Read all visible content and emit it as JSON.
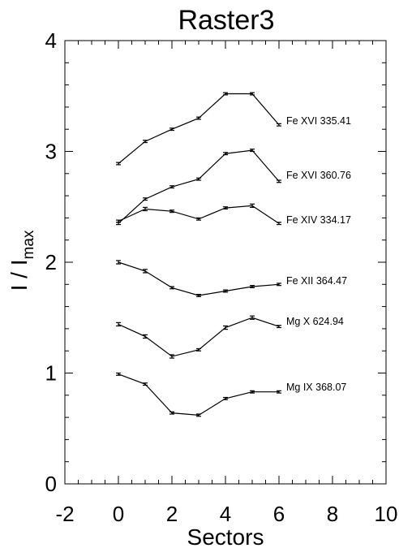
{
  "chart_data": {
    "type": "line",
    "title": "Raster3",
    "xlabel": "Sectors",
    "ylabel": "I / I",
    "ylabel_sub": "max",
    "xlim": [
      -2,
      10
    ],
    "ylim": [
      0,
      4
    ],
    "x_ticks": [
      -2,
      0,
      2,
      4,
      6,
      8,
      10
    ],
    "y_ticks": [
      0,
      1,
      2,
      3,
      4
    ],
    "x_minor_step": 0.5,
    "y_minor_step": 0.2,
    "grid": false,
    "legend": "inline labels at right end of each series",
    "x": [
      0,
      1,
      2,
      3,
      4,
      5,
      6
    ],
    "series": [
      {
        "name": "Fe XVI 335.41",
        "values": [
          2.89,
          3.09,
          3.2,
          3.3,
          3.52,
          3.52,
          3.24
        ],
        "errors": [
          0.01,
          0.01,
          0.01,
          0.01,
          0.01,
          0.01,
          0.01
        ]
      },
      {
        "name": "Fe XVI 360.76",
        "values": [
          2.35,
          2.57,
          2.68,
          2.75,
          2.98,
          3.01,
          2.73
        ],
        "errors": [
          0.01,
          0.01,
          0.01,
          0.01,
          0.01,
          0.01,
          0.01
        ]
      },
      {
        "name": "Fe XIV 334.17",
        "values": [
          2.37,
          2.48,
          2.46,
          2.39,
          2.49,
          2.51,
          2.35
        ],
        "errors": [
          0.01,
          0.015,
          0.01,
          0.01,
          0.01,
          0.015,
          0.01
        ]
      },
      {
        "name": "Fe XII 364.47",
        "values": [
          2.0,
          1.92,
          1.77,
          1.7,
          1.74,
          1.78,
          1.8
        ],
        "errors": [
          0.015,
          0.015,
          0.01,
          0.01,
          0.01,
          0.01,
          0.01
        ]
      },
      {
        "name": "Mg X 624.94",
        "values": [
          1.44,
          1.33,
          1.15,
          1.21,
          1.41,
          1.5,
          1.42
        ],
        "errors": [
          0.015,
          0.015,
          0.015,
          0.01,
          0.015,
          0.015,
          0.01
        ]
      },
      {
        "name": "Mg IX 368.07",
        "values": [
          0.99,
          0.9,
          0.64,
          0.62,
          0.77,
          0.83,
          0.83
        ],
        "errors": [
          0.01,
          0.01,
          0.01,
          0.01,
          0.01,
          0.01,
          0.01
        ]
      }
    ]
  }
}
